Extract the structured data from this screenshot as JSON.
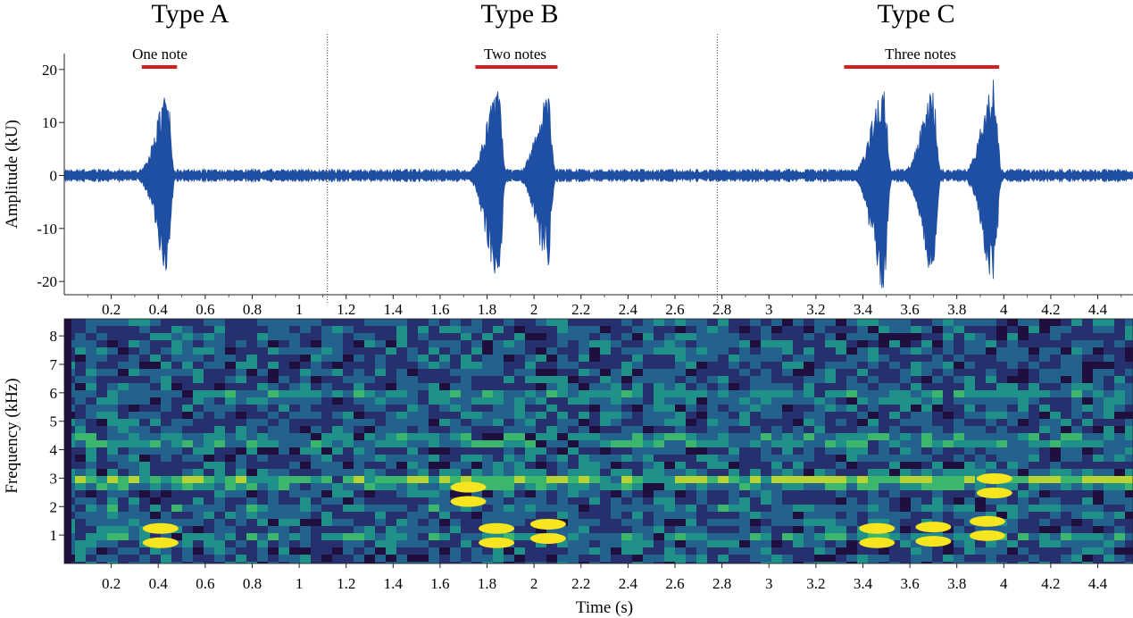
{
  "chart_data": [
    {
      "type": "line",
      "title": "",
      "ylabel": "Amplitude (kU)",
      "xlabel": "",
      "xlim": [
        0,
        4.55
      ],
      "ylim": [
        -22.5,
        23
      ],
      "yticks": [
        20,
        10,
        0,
        -10,
        -20
      ],
      "xticks": [
        0.2,
        0.4,
        0.6,
        0.8,
        1,
        1.2,
        1.4,
        1.6,
        1.8,
        2,
        2.2,
        2.4,
        2.6,
        2.8,
        3,
        3.2,
        3.4,
        3.6,
        3.8,
        4,
        4.2,
        4.4
      ],
      "color": "#1f4fa3",
      "sections": [
        {
          "label": "Type A",
          "x_range": [
            0,
            1.12
          ],
          "note_label": "One note",
          "note_span": [
            0.33,
            0.48
          ]
        },
        {
          "label": "Type B",
          "x_range": [
            1.12,
            2.78
          ],
          "note_label": "Two notes",
          "note_span": [
            1.75,
            2.1
          ]
        },
        {
          "label": "Type C",
          "x_range": [
            2.78,
            4.55
          ],
          "note_label": "Three notes",
          "note_span": [
            3.32,
            3.98
          ]
        }
      ],
      "separators_x": [
        1.12,
        2.78
      ],
      "note_bar_color": "#d61f1f",
      "background_noise_kU": 1.2,
      "notes": [
        {
          "x": 0.44,
          "peak_pos": 15.5,
          "peak_neg": -18.5
        },
        {
          "x": 1.85,
          "peak_pos": 17.5,
          "peak_neg": -22
        },
        {
          "x": 2.06,
          "peak_pos": 15,
          "peak_neg": -17
        },
        {
          "x": 3.49,
          "peak_pos": 18.5,
          "peak_neg": -22
        },
        {
          "x": 3.7,
          "peak_pos": 16.5,
          "peak_neg": -20
        },
        {
          "x": 3.96,
          "peak_pos": 18.5,
          "peak_neg": -20.5
        }
      ]
    },
    {
      "type": "heatmap",
      "title": "",
      "ylabel": "Frequency (kHz)",
      "xlabel": "Time (s)",
      "xlim": [
        0,
        4.55
      ],
      "ylim": [
        0,
        8.6
      ],
      "yticks": [
        1,
        2,
        3,
        4,
        5,
        6,
        7,
        8
      ],
      "xticks": [
        0.2,
        0.4,
        0.6,
        0.8,
        1,
        1.2,
        1.4,
        1.6,
        1.8,
        2,
        2.2,
        2.4,
        2.6,
        2.8,
        3,
        3.2,
        3.4,
        3.6,
        3.8,
        4,
        4.2,
        4.4
      ],
      "colormap": [
        "#1f0f3f",
        "#26306e",
        "#23628c",
        "#1f9189",
        "#3cb56d",
        "#b7d532",
        "#f7e51f"
      ],
      "bands_khz": [
        {
          "center": 0.9,
          "level": 0.45
        },
        {
          "center": 1.9,
          "level": 0.4
        },
        {
          "center": 2.9,
          "level": 0.72
        },
        {
          "center": 4.3,
          "level": 0.55
        },
        {
          "center": 5.9,
          "level": 0.45
        },
        {
          "center": 7.7,
          "level": 0.18
        }
      ],
      "hot_spots": [
        {
          "x": 0.41,
          "freq": 0.95
        },
        {
          "x": 1.84,
          "freq": 0.95
        },
        {
          "x": 1.72,
          "freq": 2.4
        },
        {
          "x": 2.06,
          "freq": 1.1
        },
        {
          "x": 3.46,
          "freq": 0.95
        },
        {
          "x": 3.7,
          "freq": 1.0
        },
        {
          "x": 3.93,
          "freq": 1.2
        },
        {
          "x": 3.96,
          "freq": 2.7
        }
      ]
    }
  ],
  "sections": {
    "type_a": "Type A",
    "type_b": "Type B",
    "type_c": "Type C"
  },
  "note_labels": {
    "a": "One note",
    "b": "Two notes",
    "c": "Three notes"
  },
  "axes": {
    "amplitude_label": "Amplitude (kU)",
    "frequency_label": "Frequency (kHz)",
    "time_label": "Time (s)"
  }
}
